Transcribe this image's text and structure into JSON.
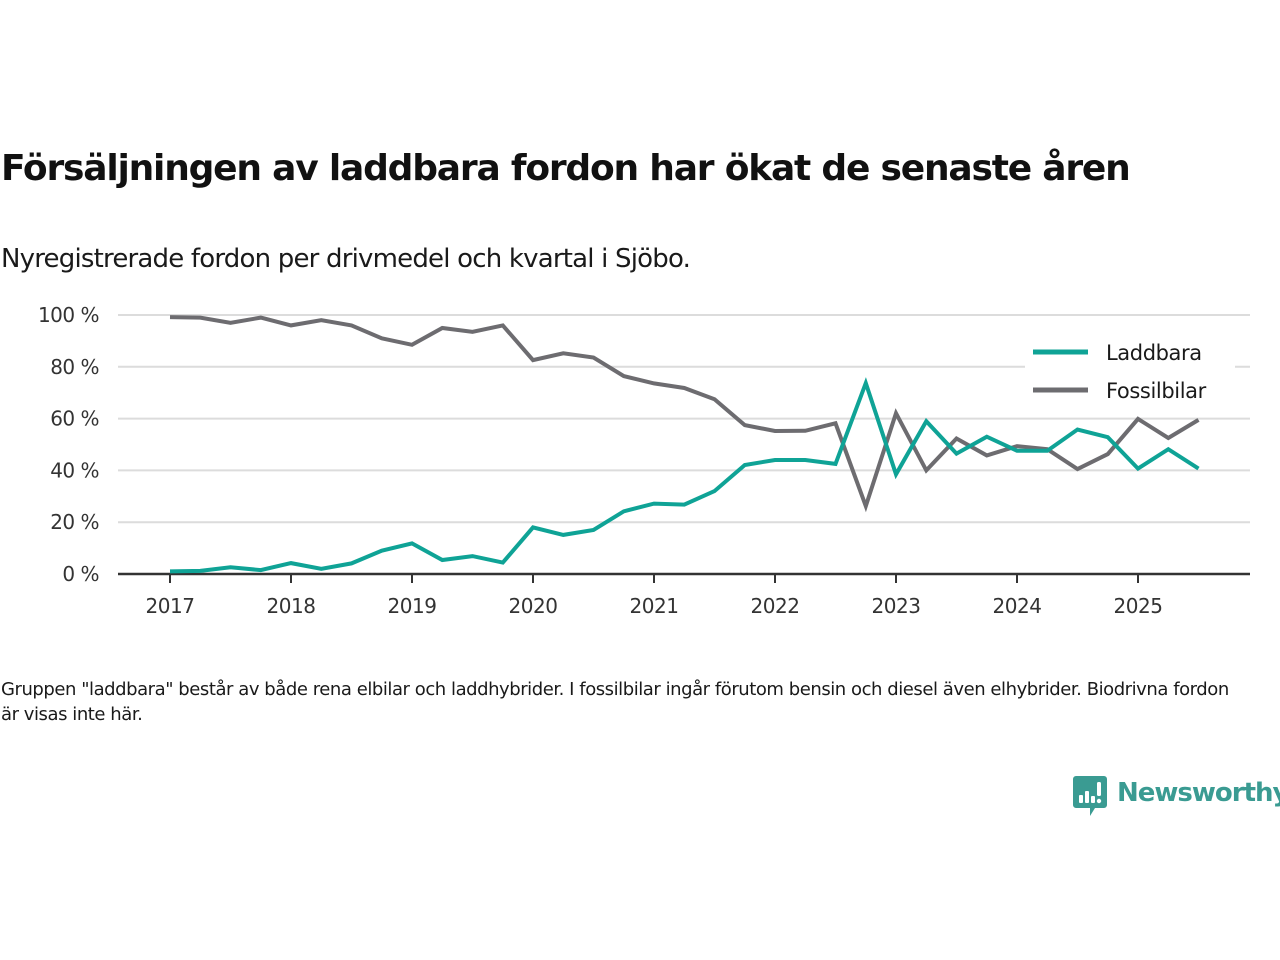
{
  "header": {
    "title": "Försäljningen av laddbara fordon har ökat de senaste åren",
    "subtitle": "Nyregistrerade fordon per drivmedel och kvartal i Sjöbo."
  },
  "footer": {
    "note": "Gruppen \"laddbara\" består av både rena elbilar och laddhybrider. I fossilbilar ingår förutom bensin och diesel även elhybrider. Biodrivna fordon är visas inte här.",
    "brand": "Newsworthy",
    "brand_icon": "newsworthy-logo-icon",
    "brand_color": "#3a9b92"
  },
  "chart_data": {
    "type": "line",
    "title": "Försäljningen av laddbara fordon har ökat de senaste åren",
    "subtitle": "Nyregistrerade fordon per drivmedel och kvartal i Sjöbo.",
    "xlabel": "",
    "ylabel": "",
    "x": [
      "2017Q1",
      "2017Q2",
      "2017Q3",
      "2017Q4",
      "2018Q1",
      "2018Q2",
      "2018Q3",
      "2018Q4",
      "2019Q1",
      "2019Q2",
      "2019Q3",
      "2019Q4",
      "2020Q1",
      "2020Q2",
      "2020Q3",
      "2020Q4",
      "2021Q1",
      "2021Q2",
      "2021Q3",
      "2021Q4",
      "2022Q1",
      "2022Q2",
      "2022Q3",
      "2022Q4",
      "2023Q1",
      "2023Q2",
      "2023Q3",
      "2023Q4",
      "2024Q1",
      "2024Q2",
      "2024Q3",
      "2024Q4",
      "2025Q1",
      "2025Q2",
      "2025Q3"
    ],
    "x_ticks": [
      "2017",
      "2018",
      "2019",
      "2020",
      "2021",
      "2022",
      "2023",
      "2024",
      "2025"
    ],
    "y_ticks": [
      0,
      20,
      40,
      60,
      80,
      100
    ],
    "y_tick_suffix": " %",
    "ylim": [
      0,
      100
    ],
    "grid": "horizontal",
    "legend_position": "top-right",
    "series": [
      {
        "name": "Laddbara",
        "color": "#0fa396",
        "values": [
          1.0,
          1.2,
          2.6,
          1.5,
          4.2,
          2.0,
          4.1,
          9.0,
          11.8,
          5.4,
          6.9,
          4.4,
          18.0,
          15.1,
          17.0,
          24.2,
          27.2,
          26.8,
          32.0,
          42.1,
          44.0,
          44.0,
          42.5,
          73.7,
          38.5,
          59.0,
          46.5,
          53.0,
          47.6,
          47.6,
          55.8,
          52.8,
          40.7,
          48.2,
          40.7
        ]
      },
      {
        "name": "Fossilbilar",
        "color": "#6d6c70",
        "values": [
          99.2,
          99.0,
          97.0,
          99.0,
          96.0,
          98.0,
          96.0,
          91.0,
          88.5,
          95.0,
          93.5,
          96.0,
          82.6,
          85.2,
          83.6,
          76.4,
          73.6,
          71.8,
          67.5,
          57.5,
          55.2,
          55.3,
          58.2,
          26.2,
          62.1,
          40.0,
          52.3,
          45.8,
          49.4,
          48.2,
          40.5,
          46.3,
          59.9,
          52.5,
          59.5
        ]
      }
    ]
  }
}
